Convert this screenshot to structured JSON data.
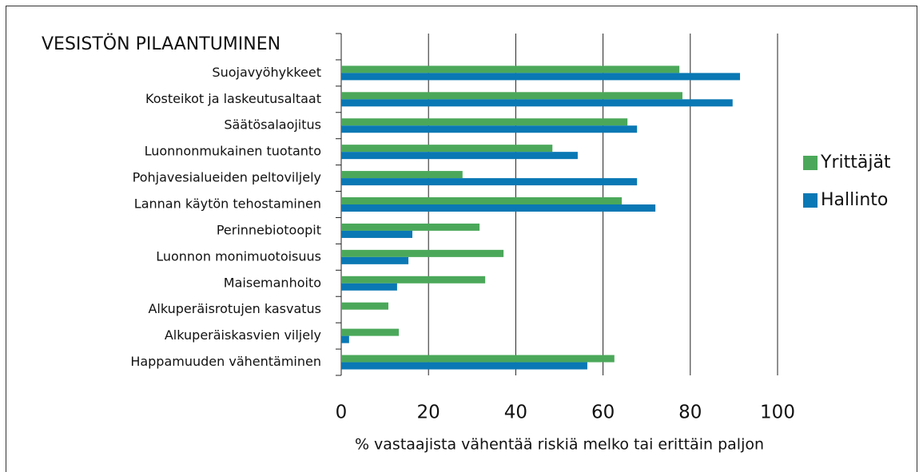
{
  "chart_data": {
    "type": "hbar",
    "title": "VESISTÖN PILAANTUMINEN",
    "x_label": "% vastaajista vähentää riskiä melko tai erittäin paljon",
    "categories": [
      "Suojavyöhykkeet",
      "Kosteikot ja laskeutusaltaat",
      "Säätösalaojitus",
      "Luonnonmukainen tuotanto",
      "Pohjavesialueiden peltoviljely",
      "Lannan käytön tehostaminen",
      "Perinnebiotoopit",
      "Luonnon monimuotoisuus",
      "Maisemanhoito",
      "Alkuperäisrotujen kasvatus",
      "Alkuperäiskasvien viljely",
      "Happamuuden vähentäminen"
    ],
    "series": [
      {
        "name": "Yrittäjät",
        "color": "#4ba85a",
        "values": [
          77.5,
          78.2,
          65.6,
          48.4,
          27.8,
          64.3,
          31.7,
          37.2,
          33.0,
          10.8,
          13.2,
          62.6
        ]
      },
      {
        "name": "Hallinto",
        "color": "#0a78b4",
        "values": [
          91.4,
          89.7,
          67.8,
          54.2,
          67.8,
          72.0,
          16.3,
          15.4,
          12.8,
          0,
          1.8,
          56.4
        ]
      }
    ],
    "xlim": [
      0,
      100
    ],
    "xticks": [
      0,
      20,
      40,
      60,
      80,
      100
    ],
    "grid": true
  }
}
